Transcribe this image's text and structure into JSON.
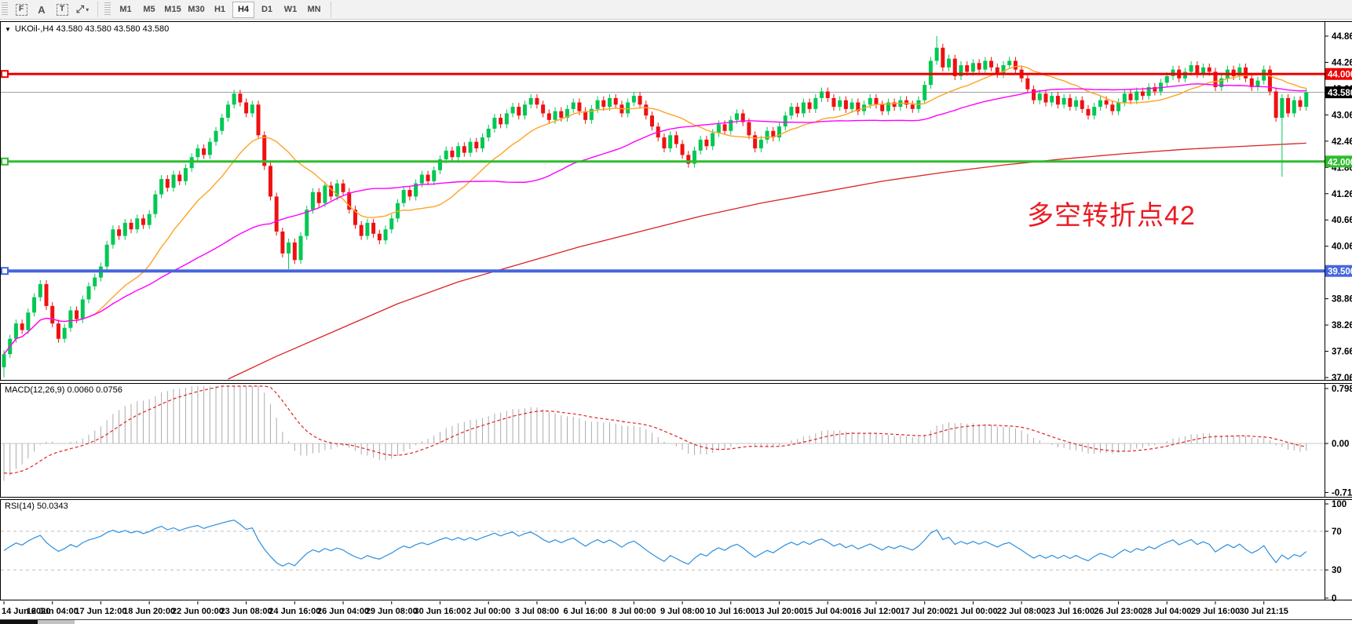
{
  "toolbar": {
    "icons": [
      {
        "name": "chart-mode-icon",
        "glyph": "F",
        "style": "dashed"
      },
      {
        "name": "text-label-icon",
        "glyph": "A",
        "style": "plain"
      },
      {
        "name": "text-tool-icon",
        "glyph": "T",
        "style": "dashed"
      },
      {
        "name": "shapes-tool-icon",
        "glyph": "⤢",
        "style": "plain",
        "caret": "▾"
      }
    ],
    "timeframes": [
      {
        "label": "M1",
        "active": false
      },
      {
        "label": "M5",
        "active": false
      },
      {
        "label": "M15",
        "active": false
      },
      {
        "label": "M30",
        "active": false
      },
      {
        "label": "H1",
        "active": false
      },
      {
        "label": "H4",
        "active": true
      },
      {
        "label": "D1",
        "active": false
      },
      {
        "label": "W1",
        "active": false
      },
      {
        "label": "MN",
        "active": false
      }
    ]
  },
  "header": {
    "dropdown_glyph": "▼",
    "symbol_line": "UKOil-,H4  43.580 43.580 43.580 43.580"
  },
  "annotation": {
    "text": "多空转折点42",
    "color": "#ea1b22"
  },
  "chart_data": {
    "type": "candlestick",
    "symbol": "UKOil-",
    "timeframe": "H4",
    "ohlc_display": [
      "43.580",
      "43.580",
      "43.580",
      "43.580"
    ],
    "colors": {
      "bull": "#00c853",
      "bear": "#ee1111",
      "price_line": "#9a9a9a",
      "ma_fast": "#ffa426",
      "ma_mid": "#ff00ff",
      "ma_slow": "#dd2222"
    },
    "price_axis": {
      "ticks": [
        "44.865",
        "44.265",
        "43.665",
        "43.065",
        "42.465",
        "41.865",
        "41.265",
        "40.665",
        "40.065",
        "39.465",
        "38.865",
        "38.265",
        "37.665",
        "37.065"
      ]
    },
    "current_price": {
      "value": 43.58,
      "label": "43.580"
    },
    "horizontal_lines": [
      {
        "price": 44.0,
        "label": "44.000",
        "color": "#ee0000",
        "width": 3
      },
      {
        "price": 42.0,
        "label": "42.000",
        "color": "#2ebd2e",
        "width": 3
      },
      {
        "price": 39.5,
        "label": "39.500",
        "color": "#4466dd",
        "width": 4
      }
    ],
    "x_labels": [
      "14 Jun 2020",
      "16 Jun 04:00",
      "17 Jun 12:00",
      "18 Jun 20:00",
      "22 Jun 00:00",
      "23 Jun 08:00",
      "24 Jun 16:00",
      "26 Jun 04:00",
      "29 Jun 08:00",
      "30 Jun 16:00",
      "2 Jul 00:00",
      "3 Jul 08:00",
      "6 Jul 16:00",
      "8 Jul 00:00",
      "9 Jul 08:00",
      "10 Jul 16:00",
      "13 Jul 20:00",
      "15 Jul 04:00",
      "16 Jul 12:00",
      "17 Jul 20:00",
      "21 Jul 00:00",
      "22 Jul 08:00",
      "23 Jul 16:00",
      "26 Jul 23:00",
      "28 Jul 04:00",
      "29 Jul 16:00",
      "30 Jul 21:15"
    ],
    "bars_per_label": 8,
    "candles": {
      "open_first": 37.3,
      "default_wick": 0.09,
      "wick_overrides": {
        "0": {
          "low": 37.07
        },
        "47": {
          "low": 39.54
        },
        "154": {
          "high": 44.87
        },
        "211": {
          "low": 41.65
        }
      },
      "closes": [
        37.6,
        37.95,
        38.3,
        38.15,
        38.55,
        38.9,
        39.2,
        38.7,
        38.3,
        37.95,
        38.2,
        38.6,
        38.4,
        38.85,
        39.15,
        39.35,
        39.6,
        40.1,
        40.45,
        40.3,
        40.6,
        40.45,
        40.7,
        40.55,
        40.8,
        41.25,
        41.6,
        41.4,
        41.7,
        41.55,
        41.85,
        42.1,
        42.3,
        42.15,
        42.45,
        42.7,
        43.0,
        43.3,
        43.55,
        43.35,
        43.1,
        43.3,
        42.6,
        41.9,
        41.2,
        40.4,
        39.9,
        40.15,
        39.75,
        40.3,
        40.9,
        41.3,
        41.05,
        41.45,
        41.2,
        41.5,
        41.3,
        40.9,
        40.55,
        40.3,
        40.6,
        40.35,
        40.2,
        40.45,
        40.7,
        41.05,
        41.35,
        41.2,
        41.5,
        41.7,
        41.55,
        41.8,
        42.05,
        42.25,
        42.1,
        42.35,
        42.2,
        42.45,
        42.3,
        42.55,
        42.75,
        43.0,
        42.85,
        43.1,
        43.25,
        43.05,
        43.3,
        43.45,
        43.3,
        43.1,
        42.95,
        43.15,
        43.0,
        43.2,
        43.35,
        43.15,
        42.95,
        43.2,
        43.4,
        43.25,
        43.45,
        43.3,
        43.1,
        43.35,
        43.5,
        43.3,
        43.05,
        42.8,
        42.55,
        42.3,
        42.6,
        42.4,
        42.15,
        41.95,
        42.25,
        42.5,
        42.35,
        42.65,
        42.85,
        42.7,
        42.95,
        43.1,
        42.9,
        42.6,
        42.3,
        42.5,
        42.7,
        42.55,
        42.8,
        43.05,
        43.25,
        43.1,
        43.35,
        43.2,
        43.45,
        43.6,
        43.45,
        43.25,
        43.4,
        43.2,
        43.35,
        43.15,
        43.3,
        43.45,
        43.3,
        43.15,
        43.35,
        43.25,
        43.4,
        43.3,
        43.2,
        43.4,
        43.75,
        44.3,
        44.6,
        44.15,
        44.35,
        43.95,
        44.2,
        44.05,
        44.25,
        44.1,
        44.3,
        44.15,
        44.0,
        44.2,
        44.3,
        44.1,
        43.9,
        43.65,
        43.4,
        43.55,
        43.35,
        43.5,
        43.3,
        43.45,
        43.25,
        43.4,
        43.2,
        43.05,
        43.25,
        43.4,
        43.3,
        43.15,
        43.35,
        43.55,
        43.4,
        43.6,
        43.5,
        43.7,
        43.6,
        43.8,
        43.95,
        44.1,
        43.9,
        44.05,
        44.2,
        44.0,
        44.15,
        44.05,
        43.7,
        43.9,
        44.1,
        43.95,
        44.15,
        43.9,
        43.7,
        43.85,
        44.1,
        43.6,
        43.0,
        43.45,
        43.1,
        43.4,
        43.25,
        43.58
      ]
    },
    "moving_averages": [
      {
        "name": "ma-fast-orange",
        "type": "sma",
        "period": 16,
        "color": "#ffa426"
      },
      {
        "name": "ma-mid-magenta",
        "type": "sma",
        "period": 45,
        "color": "#ff00ff"
      }
    ],
    "slow_ma_red": {
      "color": "#dd2222",
      "anchors": [
        [
          37,
          37.0
        ],
        [
          45,
          37.55
        ],
        [
          55,
          38.15
        ],
        [
          65,
          38.75
        ],
        [
          75,
          39.25
        ],
        [
          85,
          39.65
        ],
        [
          95,
          40.05
        ],
        [
          105,
          40.4
        ],
        [
          115,
          40.75
        ],
        [
          125,
          41.05
        ],
        [
          135,
          41.3
        ],
        [
          145,
          41.55
        ],
        [
          155,
          41.75
        ],
        [
          165,
          41.92
        ],
        [
          175,
          42.06
        ],
        [
          185,
          42.18
        ],
        [
          195,
          42.28
        ],
        [
          205,
          42.35
        ],
        [
          215,
          42.42
        ]
      ]
    },
    "indicators": {
      "macd": {
        "label": "MACD(12,26,9) 0.0060 0.0756",
        "params": [
          12,
          26,
          9
        ],
        "values_text": [
          "0.0060",
          "0.0756"
        ],
        "axis_ticks": [
          "0.7986",
          "0.00",
          "-0.7124"
        ],
        "axis_max": 0.7986,
        "axis_min": -0.7124,
        "hist_color": "#ababab",
        "signal_color": "#e02020",
        "seed": {
          "ema12": -0.15,
          "ema26": 0.45,
          "signal": 0.2
        }
      },
      "rsi": {
        "label": "RSI(14) 50.0343",
        "period": 14,
        "value": 50.0343,
        "axis_ticks": [
          "100",
          "70",
          "30",
          "0"
        ],
        "levels": [
          70,
          30
        ],
        "line_color": "#2b8fe0",
        "level_color": "#bdbdbd"
      }
    }
  }
}
